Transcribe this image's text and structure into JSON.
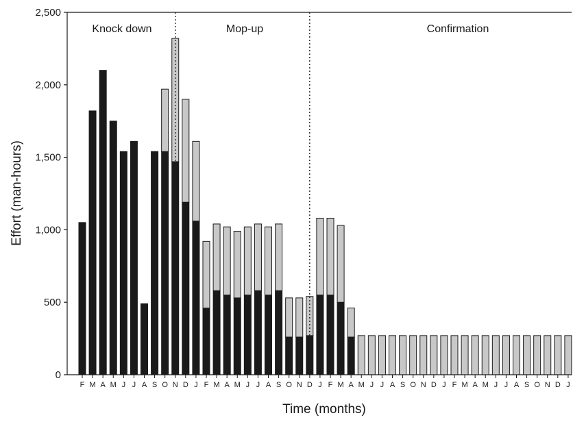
{
  "chart_data": {
    "type": "bar",
    "stacked": true,
    "xlabel": "Time (months)",
    "ylabel": "Effort (man-hours)",
    "ylim": [
      0,
      2500
    ],
    "yticks": [
      0,
      500,
      1000,
      1500,
      2000,
      2500
    ],
    "ytick_labels": [
      "0",
      "500",
      "1,000",
      "1,500",
      "2,000",
      "2,500"
    ],
    "grid": false,
    "categories": [
      "F",
      "M",
      "A",
      "M",
      "J",
      "J",
      "A",
      "S",
      "O",
      "N",
      "D",
      "J",
      "F",
      "M",
      "A",
      "M",
      "J",
      "J",
      "A",
      "S",
      "O",
      "N",
      "D",
      "J",
      "F",
      "M",
      "A",
      "M",
      "J",
      "J",
      "A",
      "S",
      "O",
      "N",
      "D",
      "J",
      "F",
      "M",
      "A",
      "M",
      "J",
      "J",
      "A",
      "S",
      "O",
      "N",
      "D",
      "J"
    ],
    "series": [
      {
        "color": "#1a1a1a",
        "values": [
          1050,
          1820,
          2100,
          1750,
          1540,
          1610,
          490,
          1540,
          1540,
          1470,
          1190,
          1060,
          460,
          580,
          550,
          530,
          550,
          580,
          550,
          580,
          260,
          260,
          270,
          550,
          550,
          500,
          260,
          0,
          0,
          0,
          0,
          0,
          0,
          0,
          0,
          0,
          0,
          0,
          0,
          0,
          0,
          0,
          0,
          0,
          0,
          0,
          0,
          0
        ]
      },
      {
        "color": "#c8c8c8",
        "values": [
          0,
          0,
          0,
          0,
          0,
          0,
          0,
          0,
          430,
          850,
          710,
          550,
          460,
          460,
          470,
          460,
          470,
          460,
          470,
          460,
          270,
          270,
          270,
          530,
          530,
          530,
          200,
          270,
          270,
          270,
          270,
          270,
          270,
          270,
          270,
          270,
          270,
          270,
          270,
          270,
          270,
          270,
          270,
          270,
          270,
          270,
          270,
          270
        ]
      }
    ],
    "phases": [
      {
        "label": "Knock down",
        "start_index": 0,
        "end_index": 9
      },
      {
        "label": "Mop-up",
        "start_index": 10,
        "end_index": 23
      },
      {
        "label": "Confirmation",
        "start_index": 23,
        "end_index": 47
      }
    ],
    "dividers_after_index": [
      9,
      22
    ]
  }
}
